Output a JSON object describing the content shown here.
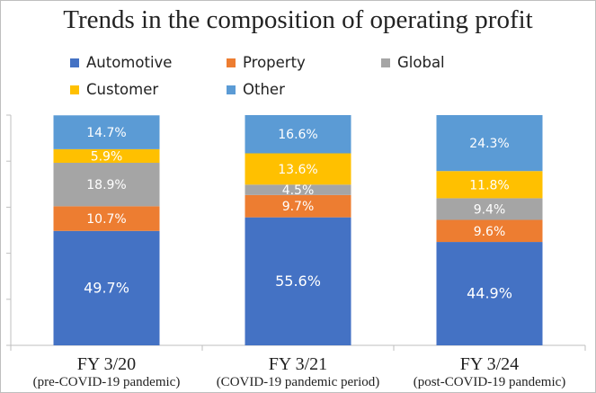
{
  "chart_data": {
    "type": "bar",
    "stacked": true,
    "normalized_percent": true,
    "title": "Trends in the composition of operating profit",
    "categories": [
      "FY 3/20",
      "FY 3/21",
      "FY 3/24"
    ],
    "category_subtitles": [
      "(pre-COVID-19 pandemic)",
      "(COVID-19 pandemic period)",
      "(post-COVID-19 pandemic)"
    ],
    "series": [
      {
        "name": "Automotive",
        "color": "#4472C4",
        "values": [
          49.7,
          55.6,
          44.9
        ],
        "labels": [
          "49.7%",
          "55.6%",
          "44.9%"
        ]
      },
      {
        "name": "Property",
        "color": "#ED7D31",
        "values": [
          10.7,
          9.7,
          9.6
        ],
        "labels": [
          "10.7%",
          "9.7%",
          "9.6%"
        ]
      },
      {
        "name": "Global",
        "color": "#A5A5A5",
        "values": [
          18.9,
          4.5,
          9.4
        ],
        "labels": [
          "18.9%",
          "4.5%",
          "9.4%"
        ]
      },
      {
        "name": "Customer",
        "color": "#FFC000",
        "values": [
          5.9,
          13.6,
          11.8
        ],
        "labels": [
          "5.9%",
          "13.6%",
          "11.8%"
        ]
      },
      {
        "name": "Other",
        "color": "#5B9BD5",
        "values": [
          14.7,
          16.6,
          24.3
        ],
        "labels": [
          "14.7%",
          "16.6%",
          "24.3%"
        ]
      }
    ],
    "ylim": [
      0,
      100
    ],
    "grid": false,
    "legend_position": "top"
  }
}
